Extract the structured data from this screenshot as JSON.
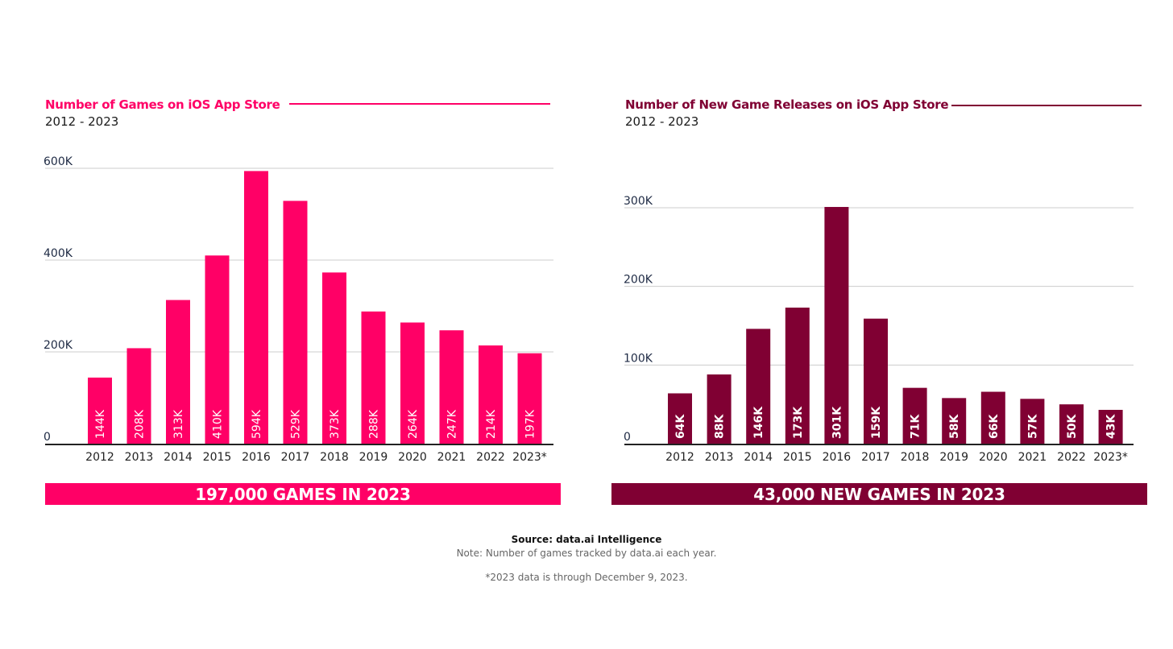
{
  "colors": {
    "left_accent": "#ff0066",
    "right_accent": "#800033",
    "grid": "#cccccc",
    "axis": "#222222",
    "tick_text": "#1e2a44"
  },
  "footer": {
    "source": "Source: data.ai Intelligence",
    "note": "Note: Number of games tracked by data.ai each year.",
    "footnote": "*2023 data is through December 9, 2023."
  },
  "chart_data": [
    {
      "type": "bar",
      "title": "Number of Games on iOS App Store",
      "subtitle": "2012 - 2023",
      "xlabel": "",
      "ylabel": "",
      "categories": [
        "2012",
        "2013",
        "2014",
        "2015",
        "2016",
        "2017",
        "2018",
        "2019",
        "2020",
        "2021",
        "2022",
        "2023*"
      ],
      "values": [
        144000,
        208000,
        313000,
        410000,
        594000,
        529000,
        373000,
        288000,
        264000,
        247000,
        214000,
        197000
      ],
      "data_labels": [
        "144K",
        "208K",
        "313K",
        "410K",
        "594K",
        "529K",
        "373K",
        "288K",
        "264K",
        "247K",
        "214K",
        "197K"
      ],
      "yticks": [
        0,
        200000,
        400000,
        600000
      ],
      "ytick_labels": [
        "0",
        "200K",
        "400K",
        "600K"
      ],
      "ylim": [
        0,
        600000
      ],
      "grid": true,
      "legend": "none",
      "banner": "197,000 GAMES IN 2023",
      "color": "#ff0066"
    },
    {
      "type": "bar",
      "title": "Number of New Game Releases on iOS App Store",
      "subtitle": "2012 - 2023",
      "xlabel": "",
      "ylabel": "",
      "categories": [
        "2012",
        "2013",
        "2014",
        "2015",
        "2016",
        "2017",
        "2018",
        "2019",
        "2020",
        "2021",
        "2022",
        "2023*"
      ],
      "values": [
        64000,
        88000,
        146000,
        173000,
        301000,
        159000,
        71000,
        58000,
        66000,
        57000,
        50000,
        43000
      ],
      "data_labels": [
        "64K",
        "88K",
        "146K",
        "173K",
        "301K",
        "159K",
        "71K",
        "58K",
        "66K",
        "57K",
        "50K",
        "43K"
      ],
      "yticks": [
        0,
        100000,
        200000,
        300000
      ],
      "ytick_labels": [
        "0",
        "100K",
        "200K",
        "300K"
      ],
      "ylim": [
        0,
        300000
      ],
      "grid": true,
      "legend": "none",
      "banner": "43,000 NEW GAMES IN 2023",
      "color": "#800033"
    }
  ]
}
